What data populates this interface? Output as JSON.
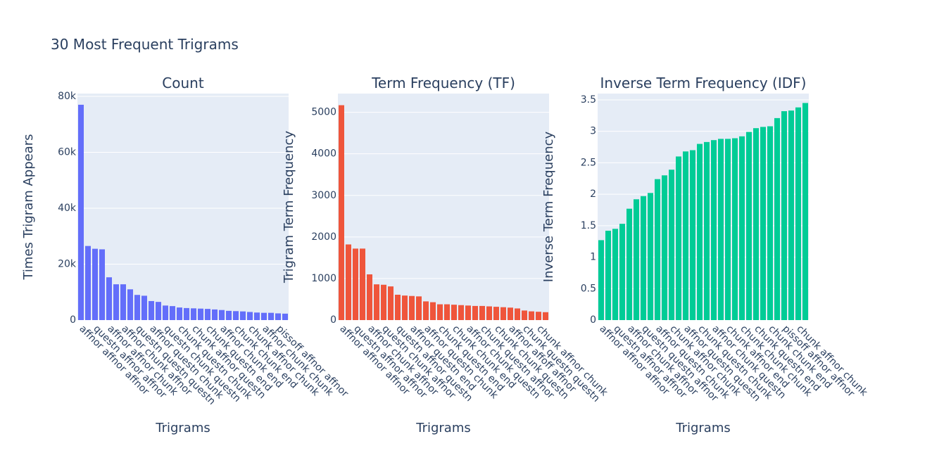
{
  "title": "30 Most Frequent Trigrams",
  "chart_data": [
    {
      "type": "bar",
      "title": "Count",
      "x_label": "Trigrams",
      "y_label": "Times Trigram Appears",
      "color": "#636efa",
      "categories": [
        "affnor affnor affnor",
        null,
        "questn affnor affnor",
        null,
        "affnor affnor chunk",
        null,
        "affnor chunk affnor",
        null,
        "questn questn questn",
        null,
        "affnor questn chunk",
        null,
        "questn chunk questn",
        null,
        "chunk questn chunk",
        null,
        "chunk affnor questn",
        null,
        "chunk questn end",
        null,
        "affnor chunk end",
        null,
        "chunk chunk end",
        null,
        "chunk affnor chunk",
        null,
        "affnor chunk chunk",
        null,
        "pissoff affnor affnor",
        null
      ],
      "values": [
        77000,
        26500,
        25500,
        25300,
        15300,
        12800,
        12800,
        11000,
        9000,
        8700,
        6800,
        6500,
        5200,
        5000,
        4500,
        4300,
        4200,
        4100,
        4000,
        3800,
        3600,
        3300,
        3200,
        3100,
        2900,
        2700,
        2600,
        2600,
        2400,
        2300
      ],
      "ylim": [
        0,
        81000
      ],
      "yticks": [
        0,
        {
          "value": 20000,
          "label": "20k"
        },
        {
          "value": 40000,
          "label": "40k"
        },
        {
          "value": 60000,
          "label": "60k"
        },
        {
          "value": 80000,
          "label": "80k"
        }
      ],
      "grid": true
    },
    {
      "type": "bar",
      "title": "Term Frequency (TF)",
      "x_label": "Trigrams",
      "y_label": "Trigram Term Frequency",
      "color": "#ef553b",
      "categories": [
        "affnor affnor affnor",
        null,
        "questn affnor affnor",
        null,
        "affnor chunk affnor",
        null,
        "questn chunk affnor",
        null,
        "questn affnor questn",
        null,
        "affnor questn end",
        null,
        "affnor questn chunk",
        null,
        "chunk questn end",
        null,
        "chunk chunk end",
        null,
        "affnor chunk questn",
        null,
        "chunk questn affnor",
        null,
        "chunk chunk questn",
        null,
        "affnor affoff affnor",
        null,
        "chunk questn questn",
        null,
        "chunk affnor chunk",
        null
      ],
      "values": [
        5170,
        1820,
        1720,
        1720,
        1100,
        860,
        850,
        810,
        610,
        590,
        580,
        570,
        450,
        430,
        380,
        380,
        370,
        360,
        350,
        340,
        340,
        330,
        320,
        310,
        300,
        280,
        230,
        210,
        200,
        190
      ],
      "ylim": [
        0,
        5450
      ],
      "yticks": [
        0,
        1000,
        2000,
        3000,
        4000,
        5000
      ],
      "grid": true
    },
    {
      "type": "bar",
      "title": "Inverse Term Frequency (IDF)",
      "x_label": "Trigrams",
      "y_label": "Inverse Term Frequency",
      "color": "#00cc96",
      "categories": [
        "affnor affnor affnor",
        null,
        "questn affnor affnor",
        null,
        "affnor chunk affnor",
        null,
        "questn questn affnor",
        null,
        "affnor questn chunk",
        null,
        "chunk affnor chunk",
        null,
        "affnor questn questn",
        null,
        "chunk questn chunk",
        null,
        "affnor chunk questn",
        null,
        "chunk affnor end",
        null,
        "chunk chunk chunk",
        null,
        "chunk questn end",
        null,
        "chunk chunk end",
        null,
        "pissoff affnor affnor",
        null,
        "chunk affnor chunk",
        null
      ],
      "values": [
        1.27,
        1.42,
        1.45,
        1.53,
        1.77,
        1.92,
        1.97,
        2.02,
        2.24,
        2.3,
        2.39,
        2.6,
        2.68,
        2.7,
        2.8,
        2.83,
        2.86,
        2.88,
        2.88,
        2.89,
        2.92,
        2.99,
        3.05,
        3.07,
        3.08,
        3.21,
        3.32,
        3.33,
        3.38,
        3.45
      ],
      "ylim": [
        0,
        3.6
      ],
      "yticks": [
        0,
        0.5,
        1,
        1.5,
        2,
        2.5,
        3,
        3.5
      ],
      "grid": true
    }
  ]
}
